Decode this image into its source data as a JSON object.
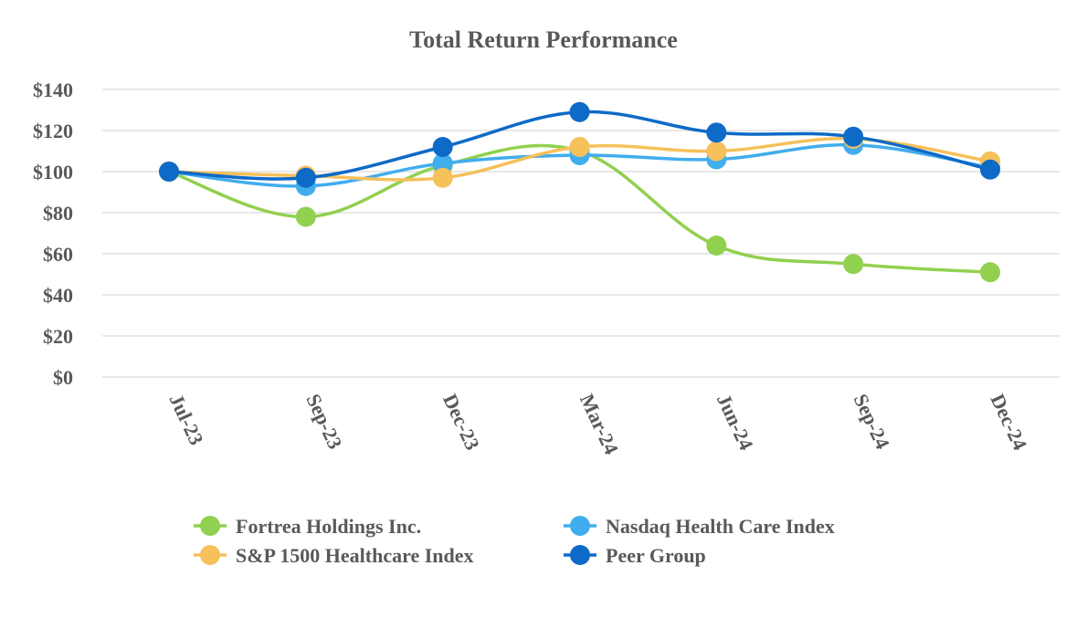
{
  "chart_data": {
    "type": "line",
    "title": "Total Return Performance",
    "xlabel": "",
    "ylabel": "",
    "categories": [
      "Jul-23",
      "Sep-23",
      "Dec-23",
      "Mar-24",
      "Jun-24",
      "Sep-24",
      "Dec-24"
    ],
    "ylim": [
      0,
      140
    ],
    "yticks": [
      0,
      20,
      40,
      60,
      80,
      100,
      120,
      140
    ],
    "ytick_labels": [
      "$0",
      "$20",
      "$40",
      "$60",
      "$80",
      "$100",
      "$120",
      "$140"
    ],
    "grid": true,
    "legend_position": "bottom",
    "series": [
      {
        "name": "Fortrea Holdings Inc.",
        "color": "#92D050",
        "values": [
          100,
          78,
          103,
          110,
          64,
          55,
          51
        ]
      },
      {
        "name": "Nasdaq Health Care Index",
        "color": "#41ADEE",
        "values": [
          100,
          93,
          104,
          108,
          106,
          113,
          102
        ]
      },
      {
        "name": "S&P 1500 Healthcare Index",
        "color": "#F6C05A",
        "values": [
          100,
          98,
          97,
          112,
          110,
          116,
          105
        ]
      },
      {
        "name": "Peer Group",
        "color": "#0E6AC7",
        "values": [
          100,
          97,
          112,
          129,
          119,
          117,
          101
        ]
      }
    ]
  }
}
